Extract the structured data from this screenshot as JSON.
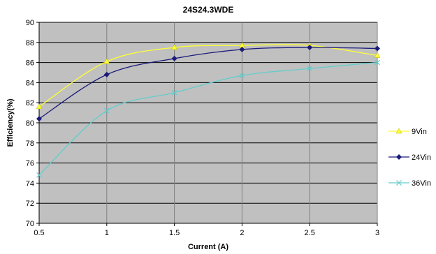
{
  "chart_data": {
    "type": "line",
    "title": "24S24.3WDE",
    "xlabel": "Current (A)",
    "ylabel": "Efficiency(%)",
    "xlim": [
      0.5,
      3
    ],
    "ylim": [
      70,
      90
    ],
    "x_ticks": [
      "0.5",
      "1",
      "1.5",
      "2",
      "2.5",
      "3"
    ],
    "y_ticks": [
      "70",
      "72",
      "74",
      "76",
      "78",
      "80",
      "82",
      "84",
      "86",
      "88",
      "90"
    ],
    "grid": true,
    "legend_position": "right",
    "plot_background": "#c0c0c0",
    "series": [
      {
        "name": "9Vin",
        "color": "#ffff33",
        "marker": "triangle",
        "x": [
          0.5,
          1,
          1.5,
          2,
          2.5,
          3
        ],
        "y": [
          81.6,
          86.1,
          87.5,
          87.7,
          87.7,
          86.7
        ]
      },
      {
        "name": "24Vin",
        "color": "#1a1a7a",
        "marker": "diamond",
        "x": [
          0.5,
          1,
          1.5,
          2,
          2.5,
          3
        ],
        "y": [
          80.4,
          84.8,
          86.4,
          87.3,
          87.5,
          87.4
        ]
      },
      {
        "name": "36Vin",
        "color": "#66cccc",
        "marker": "x",
        "x": [
          0.5,
          1,
          1.5,
          2,
          2.5,
          3
        ],
        "y": [
          74.8,
          81.2,
          83.0,
          84.7,
          85.4,
          86.0
        ]
      }
    ]
  }
}
